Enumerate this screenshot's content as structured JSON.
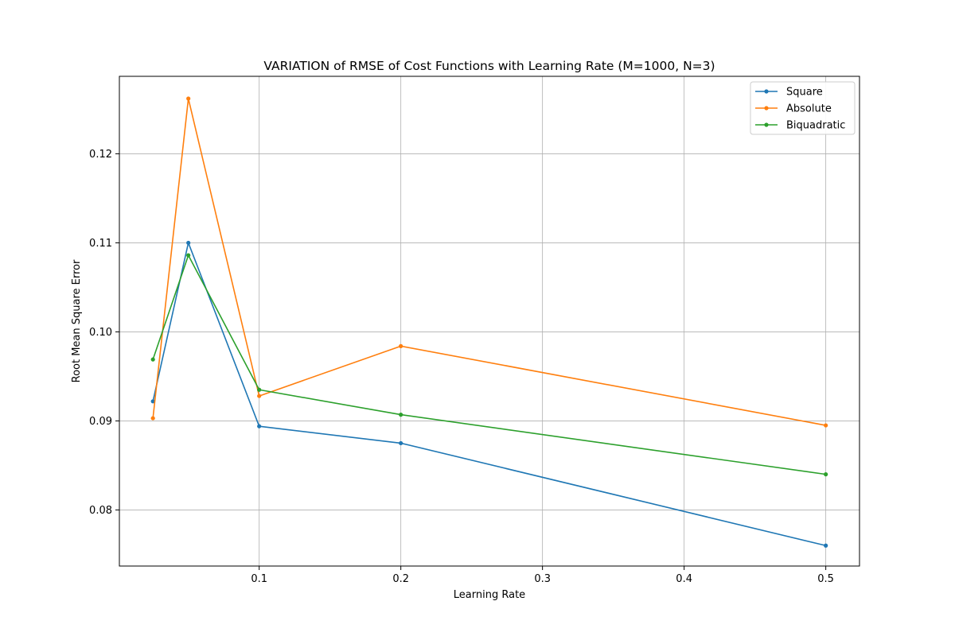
{
  "chart_data": {
    "type": "line",
    "title": "VARIATION of RMSE of Cost Functions with Learning Rate (M=1000, N=3)",
    "xlabel": "Learning Rate",
    "ylabel": "Root Mean Square Error",
    "x": [
      0.025,
      0.05,
      0.1,
      0.2,
      0.5
    ],
    "xlim": [
      0.0013,
      0.5238
    ],
    "ylim": [
      0.0737,
      0.1287
    ],
    "xticks": [
      0.1,
      0.2,
      0.3,
      0.4,
      0.5
    ],
    "xtick_labels": [
      "0.1",
      "0.2",
      "0.3",
      "0.4",
      "0.5"
    ],
    "yticks": [
      0.08,
      0.09,
      0.1,
      0.11,
      0.12
    ],
    "ytick_labels": [
      "0.08",
      "0.09",
      "0.10",
      "0.11",
      "0.12"
    ],
    "grid": true,
    "legend_position": "top-right",
    "series": [
      {
        "name": "Square",
        "color": "#1f77b4",
        "values": [
          0.0922,
          0.11,
          0.0894,
          0.0875,
          0.076
        ]
      },
      {
        "name": "Absolute",
        "color": "#ff7f0e",
        "values": [
          0.0903,
          0.1262,
          0.0928,
          0.0984,
          0.0895
        ]
      },
      {
        "name": "Biquadratic",
        "color": "#2ca02c",
        "values": [
          0.0969,
          0.1086,
          0.0935,
          0.0907,
          0.084
        ]
      }
    ]
  }
}
